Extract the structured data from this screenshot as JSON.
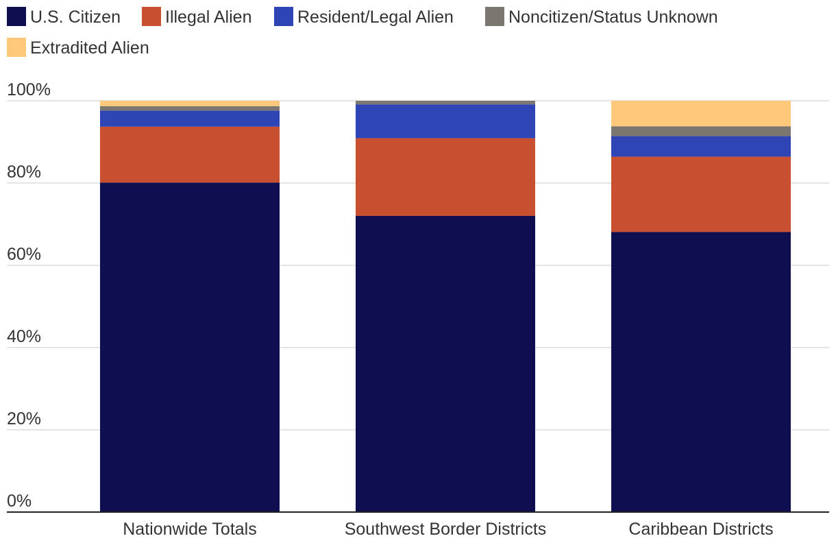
{
  "chart_data": {
    "type": "bar",
    "stacked": true,
    "percent_stacked": true,
    "categories": [
      "Nationwide Totals",
      "Southwest Border Districts",
      "Caribbean Districts"
    ],
    "series": [
      {
        "name": "U.S. Citizen",
        "color": "#0e0e50",
        "values": [
          80.1,
          72.0,
          68.1
        ]
      },
      {
        "name": "Illegal Alien",
        "color": "#c84f2f",
        "values": [
          13.6,
          18.9,
          18.3
        ]
      },
      {
        "name": "Resident/Legal Alien",
        "color": "#2f45b5",
        "values": [
          3.9,
          8.2,
          5.0
        ]
      },
      {
        "name": "Noncitizen/Status Unknown",
        "color": "#7b7670",
        "values": [
          1.1,
          0.9,
          2.4
        ]
      },
      {
        "name": "Extradited Alien",
        "color": "#ffc87a",
        "values": [
          1.3,
          0.0,
          6.2
        ]
      }
    ],
    "y_ticks": [
      "0%",
      "20%",
      "40%",
      "60%",
      "80%",
      "100%"
    ],
    "ylim": [
      0,
      100
    ],
    "grid": true,
    "legend_position": "top-left"
  }
}
